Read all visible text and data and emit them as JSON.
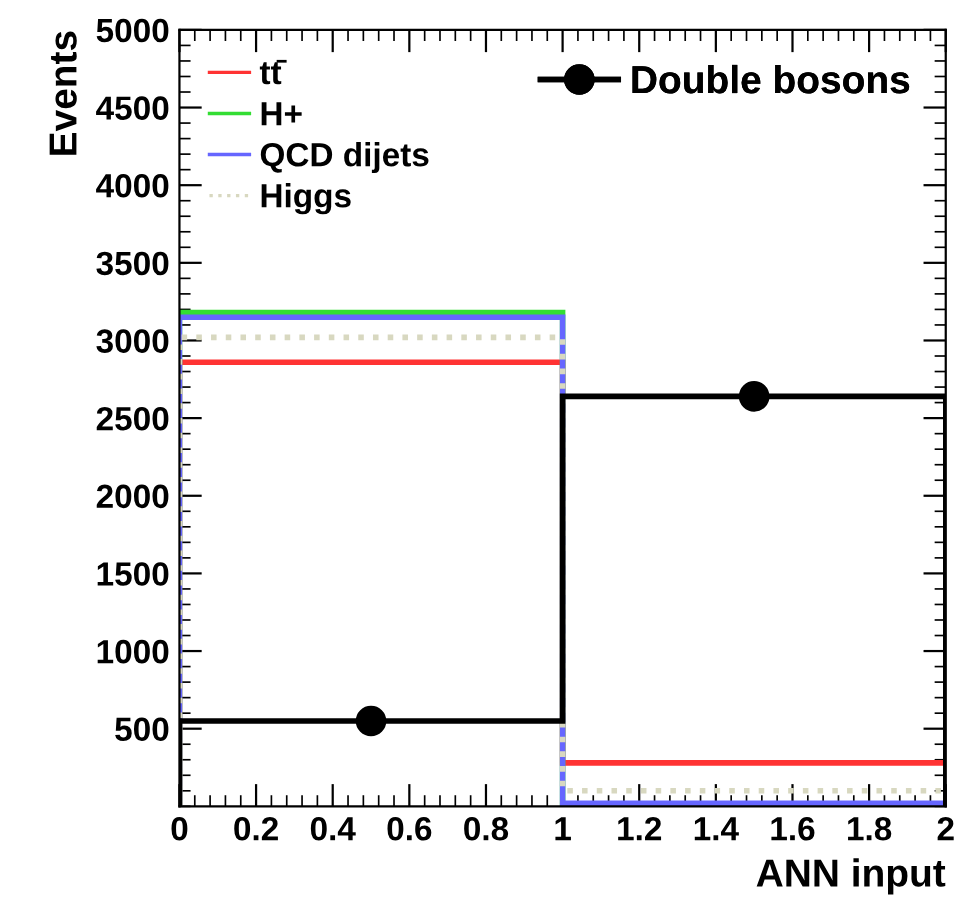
{
  "chart_data": {
    "type": "histogram",
    "xlabel": "ANN input",
    "ylabel": "Events",
    "bins": [
      0,
      1,
      2
    ],
    "series": [
      {
        "name": "tt̄",
        "color": "#ff3333",
        "values": [
          2860,
          280
        ]
      },
      {
        "name": "H+",
        "color": "#33dd33",
        "values": [
          3180,
          0
        ]
      },
      {
        "name": "QCD dijets",
        "color": "#6666ff",
        "values": [
          3150,
          20
        ]
      },
      {
        "name": "Higgs",
        "color": "#d8d8c0",
        "values": [
          3020,
          100
        ],
        "line_style": "dotted"
      },
      {
        "color": "#000000",
        "values": [
          550,
          2640
        ]
      },
      {
        "name": "Double bosons",
        "type": "scatter",
        "x": [
          0.5,
          1.5
        ],
        "color": "#000000",
        "values": [
          550,
          2640
        ],
        "marker": "circle"
      }
    ],
    "xlim": [
      0,
      2
    ],
    "xticks": [
      0,
      0.2,
      0.4,
      0.6,
      0.8,
      1,
      1.2,
      1.4,
      1.6,
      1.8,
      2
    ],
    "ylim": [
      0,
      5000
    ],
    "yticks": [
      500,
      1000,
      1500,
      2000,
      2500,
      3000,
      3500,
      4000,
      4500,
      5000
    ],
    "grid": false,
    "legend": "top left"
  }
}
